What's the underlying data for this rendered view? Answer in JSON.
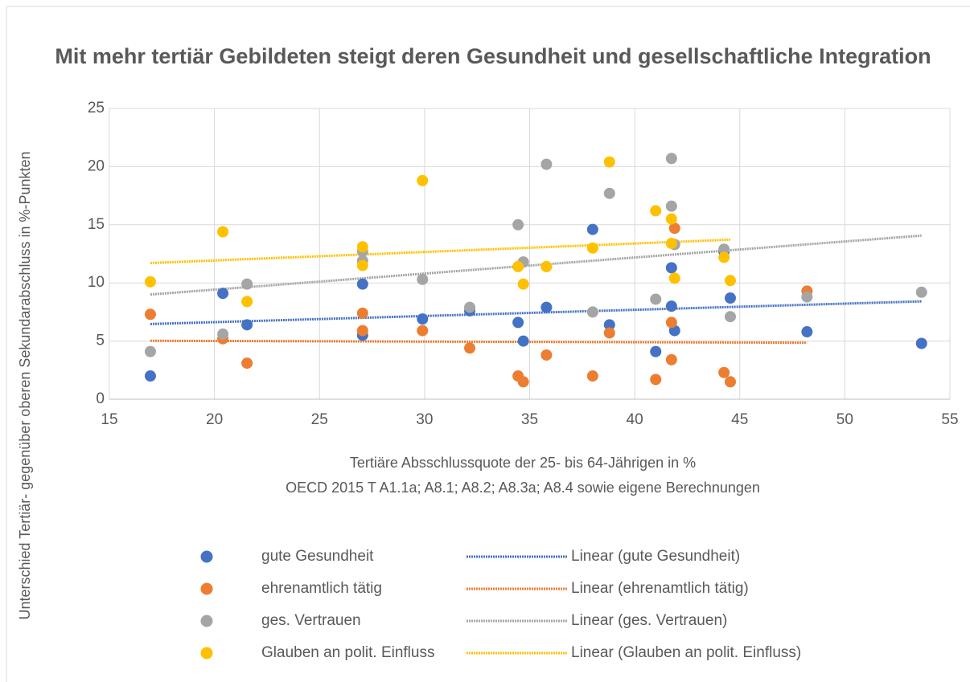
{
  "chart_data": {
    "type": "scatter",
    "title": "Mit mehr tertiär Gebildeten steigt deren Gesundheit und gesellschaftliche Integration",
    "x_label": "Tertiäre Absschlussquote der 25- bis 64-Jährigen in %",
    "source": "OECD 2015 T A1.1a; A8.1; A8.2; A8.3a; A8.4 sowie eigene Berechnungen",
    "y_label": "Unterschied Tertiär- gegenüber oberen Sekundarabschluss in %-Punkten",
    "xlim": [
      15,
      55
    ],
    "xticks": [
      15,
      20,
      25,
      30,
      35,
      40,
      45,
      50,
      55
    ],
    "ylim": [
      0,
      25
    ],
    "yticks": [
      0,
      5,
      10,
      15,
      20,
      25
    ],
    "grid": true,
    "legend": "bottom",
    "series": [
      {
        "name": "gute Gesundheit",
        "trendline": "Linear (gute Gesundheit)",
        "color": "#4472c4",
        "x": [
          16.95,
          20.4,
          21.55,
          27.05,
          27.05,
          29.9,
          32.15,
          34.45,
          34.7,
          35.8,
          38.0,
          38.8,
          41.0,
          41.75,
          41.75,
          41.9,
          44.25,
          44.55,
          48.2,
          53.65
        ],
        "values": [
          2.0,
          9.1,
          6.4,
          9.9,
          5.5,
          6.9,
          7.6,
          6.6,
          5.0,
          7.9,
          14.6,
          6.4,
          4.1,
          8.0,
          11.3,
          5.9,
          12.7,
          8.7,
          5.8,
          4.8
        ]
      },
      {
        "name": "ehrenamtlich tätig",
        "trendline": "Linear (ehrenamtlich tätig)",
        "color": "#ed7d31",
        "x": [
          16.95,
          20.4,
          21.55,
          27.05,
          27.05,
          29.9,
          32.15,
          34.45,
          34.7,
          35.8,
          38.0,
          38.8,
          41.0,
          41.75,
          41.75,
          41.9,
          44.25,
          44.55,
          48.2
        ],
        "values": [
          7.3,
          5.2,
          3.1,
          7.4,
          5.9,
          5.9,
          4.4,
          2.0,
          1.5,
          3.8,
          2.0,
          5.7,
          1.7,
          6.6,
          3.4,
          14.7,
          2.3,
          1.5,
          9.3
        ]
      },
      {
        "name": "ges. Vertrauen",
        "trendline": "Linear (ges. Vertrauen)",
        "color": "#a5a5a5",
        "x": [
          16.95,
          20.4,
          21.55,
          27.05,
          27.05,
          29.9,
          32.15,
          34.45,
          34.7,
          35.8,
          38.0,
          38.8,
          41.0,
          41.75,
          41.75,
          41.9,
          44.25,
          44.55,
          48.2,
          53.65
        ],
        "values": [
          4.1,
          5.6,
          9.9,
          12.7,
          11.9,
          10.3,
          7.9,
          15.0,
          11.8,
          20.2,
          7.5,
          17.7,
          8.6,
          20.7,
          16.6,
          13.3,
          12.9,
          7.1,
          8.8,
          9.2
        ]
      },
      {
        "name": "Glauben an polit. Einfluss",
        "trendline": "Linear (Glauben an polit. Einfluss)",
        "color": "#ffc000",
        "x": [
          16.95,
          20.4,
          21.55,
          27.05,
          27.05,
          29.9,
          34.45,
          34.7,
          35.8,
          38.0,
          38.8,
          41.0,
          41.75,
          41.75,
          41.9,
          44.25,
          44.55
        ],
        "values": [
          10.1,
          14.4,
          8.4,
          13.1,
          11.5,
          18.8,
          11.4,
          9.9,
          11.4,
          13.0,
          20.4,
          16.2,
          15.5,
          13.4,
          10.4,
          12.2,
          10.2
        ]
      }
    ]
  }
}
